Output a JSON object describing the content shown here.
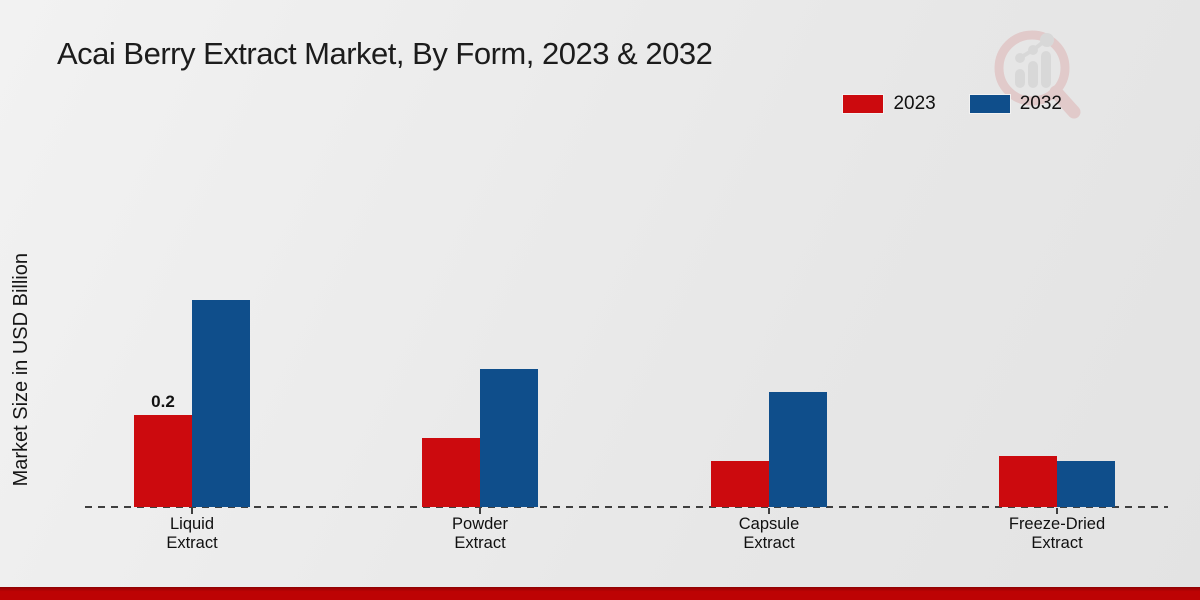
{
  "title": "Acai Berry Extract Market, By Form, 2023 & 2032",
  "y_axis_label": "Market Size in USD Billion",
  "legend": {
    "items": [
      {
        "label": "2023",
        "color": "#cc0a0e"
      },
      {
        "label": "2032",
        "color": "#0f4e8b"
      }
    ]
  },
  "colors": {
    "series_2023": "#cc0a0e",
    "series_2032": "#0f4e8b",
    "footer_accent": "#bd0304",
    "axis": "#3f3f3f",
    "background": "#ececec"
  },
  "chart_data": {
    "type": "bar",
    "title": "Acai Berry Extract Market, By Form, 2023 & 2032",
    "categories": [
      "Liquid Extract",
      "Powder Extract",
      "Capsule Extract",
      "Freeze-Dried Extract"
    ],
    "category_lines": [
      [
        "Liquid",
        "Extract"
      ],
      [
        "Powder",
        "Extract"
      ],
      [
        "Capsule",
        "Extract"
      ],
      [
        "Freeze-Dried",
        "Extract"
      ]
    ],
    "series": [
      {
        "name": "2023",
        "color": "#cc0a0e",
        "values": [
          0.2,
          0.15,
          0.1,
          0.11
        ]
      },
      {
        "name": "2032",
        "color": "#0f4e8b",
        "values": [
          0.45,
          0.3,
          0.25,
          0.1
        ]
      }
    ],
    "data_labels": [
      {
        "series": "2023",
        "category": "Liquid Extract",
        "text": "0.2"
      }
    ],
    "xlabel": "",
    "ylabel": "Market Size in USD Billion",
    "ylim": [
      0,
      0.5
    ],
    "grid": false,
    "legend_position": "top-right",
    "baseline_style": "dashed"
  }
}
